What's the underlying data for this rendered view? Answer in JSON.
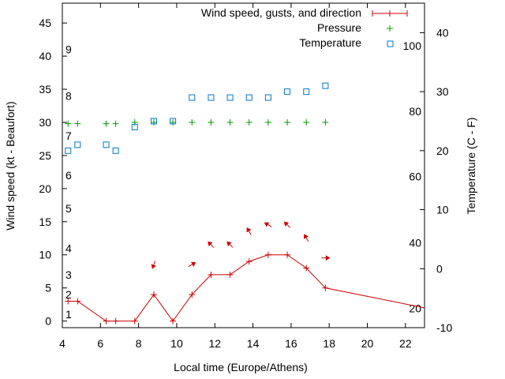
{
  "chart_data": {
    "type": "line",
    "xlabel": "Local time (Europe/Athens)",
    "ylabel_left": "Wind speed (kt - Beaufort)",
    "ylabel_right": "Temperature (C - F)",
    "xlim": [
      4,
      23
    ],
    "ylim_left": [
      -1,
      48
    ],
    "ylim_right": [
      -10,
      45
    ],
    "x_ticks": [
      4,
      6,
      8,
      10,
      12,
      14,
      16,
      18,
      20,
      22
    ],
    "y_ticks_left": [
      0,
      5,
      10,
      15,
      20,
      25,
      30,
      35,
      40,
      45
    ],
    "y_ticks_right": [
      -10,
      0,
      10,
      20,
      30,
      40
    ],
    "beaufort_labels": [
      {
        "text": "1",
        "kt": 1
      },
      {
        "text": "2",
        "kt": 4
      },
      {
        "text": "3",
        "kt": 7
      },
      {
        "text": "4",
        "kt": 11
      },
      {
        "text": "5",
        "kt": 17
      },
      {
        "text": "6",
        "kt": 22
      },
      {
        "text": "7",
        "kt": 28
      },
      {
        "text": "8",
        "kt": 34
      },
      {
        "text": "9",
        "kt": 41
      }
    ],
    "fahrenheit_labels": [
      {
        "text": "20",
        "degC": -6.7
      },
      {
        "text": "40",
        "degC": 4.4
      },
      {
        "text": "60",
        "degC": 15.6
      },
      {
        "text": "80",
        "degC": 26.7
      },
      {
        "text": "100",
        "degC": 37.8
      }
    ],
    "grid": false,
    "legend_position": "top-right",
    "series": [
      {
        "name": "Wind speed, gusts, and direction",
        "color": "#cc0000",
        "marker": "plus",
        "x": [
          4.3,
          4.8,
          6.3,
          6.8,
          7.8,
          8.8,
          9.8,
          10.8,
          11.8,
          12.8,
          13.8,
          14.8,
          15.8,
          16.8,
          17.8,
          23.0
        ],
        "y": [
          3,
          3,
          0,
          0,
          0,
          4,
          0,
          4,
          7,
          7,
          9,
          10,
          10,
          8,
          5,
          2
        ]
      },
      {
        "name": "Pressure",
        "color": "#009900",
        "marker": "plus",
        "x": [
          4.3,
          4.8,
          6.3,
          6.8,
          7.8,
          8.8,
          9.8,
          10.8,
          11.8,
          12.8,
          13.8,
          14.8,
          15.8,
          16.8,
          17.8
        ],
        "y": [
          29.8,
          29.8,
          29.8,
          29.8,
          30,
          30,
          30,
          30,
          30,
          30,
          30,
          30,
          30,
          30,
          30
        ]
      },
      {
        "name": "Temperature",
        "color": "#0077cc",
        "marker": "square",
        "axis": "right",
        "x": [
          4.3,
          4.8,
          6.3,
          6.8,
          7.8,
          8.8,
          9.8,
          10.8,
          11.8,
          12.8,
          13.8,
          14.8,
          15.8,
          16.8,
          17.8
        ],
        "y": [
          20,
          21,
          21,
          20,
          24,
          25,
          25,
          29,
          29,
          29,
          29,
          29,
          30,
          30,
          31
        ]
      }
    ],
    "wind_direction_arrows": {
      "x": [
        8.8,
        10.8,
        11.8,
        12.8,
        13.8,
        14.8,
        15.8,
        16.8,
        17.8
      ],
      "angle_deg": [
        250,
        30,
        135,
        135,
        120,
        150,
        135,
        120,
        0
      ]
    }
  }
}
